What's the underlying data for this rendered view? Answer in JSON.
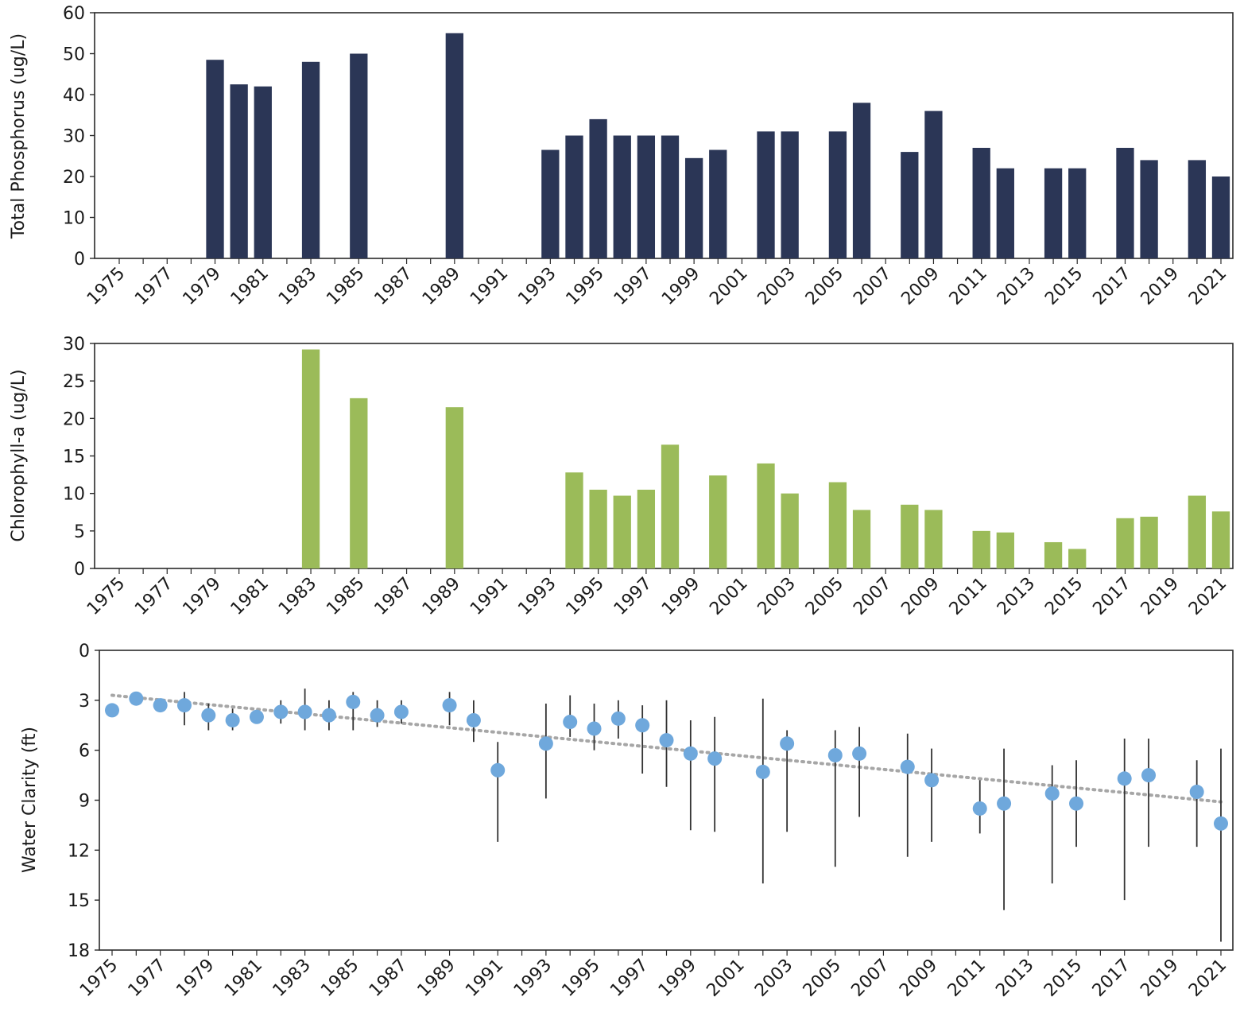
{
  "chart_data": [
    {
      "type": "bar",
      "ylabel": "Total Phosphorus (ug/L)",
      "ylim": [
        0,
        60
      ],
      "yticks": [
        0,
        10,
        20,
        30,
        40,
        50,
        60
      ],
      "xlim": [
        1975,
        2021
      ],
      "xticks": [
        1975,
        1977,
        1979,
        1981,
        1983,
        1985,
        1987,
        1989,
        1991,
        1993,
        1995,
        1997,
        1999,
        2001,
        2003,
        2005,
        2007,
        2009,
        2011,
        2013,
        2015,
        2017,
        2019,
        2021
      ],
      "color": "#2b3656",
      "x": [
        1979,
        1980,
        1981,
        1983,
        1985,
        1989,
        1993,
        1994,
        1995,
        1996,
        1997,
        1998,
        1999,
        2000,
        2002,
        2003,
        2005,
        2006,
        2008,
        2009,
        2011,
        2012,
        2014,
        2015,
        2017,
        2018,
        2020,
        2021
      ],
      "values": [
        48.5,
        42.5,
        42,
        48,
        50,
        55,
        26.5,
        30,
        34,
        30,
        30,
        30,
        24.5,
        26.5,
        31,
        31,
        31,
        38,
        26,
        36,
        27,
        22,
        22,
        22,
        27,
        24,
        24,
        20
      ]
    },
    {
      "type": "bar",
      "ylabel": "Chlorophyll-a (ug/L)",
      "ylim": [
        0,
        30
      ],
      "yticks": [
        0,
        5,
        10,
        15,
        20,
        25,
        30
      ],
      "xlim": [
        1975,
        2021
      ],
      "xticks": [
        1975,
        1977,
        1979,
        1981,
        1983,
        1985,
        1987,
        1989,
        1991,
        1993,
        1995,
        1997,
        1999,
        2001,
        2003,
        2005,
        2007,
        2009,
        2011,
        2013,
        2015,
        2017,
        2019,
        2021
      ],
      "color": "#9bbb59",
      "x": [
        1983,
        1985,
        1989,
        1994,
        1995,
        1996,
        1997,
        1998,
        2000,
        2002,
        2003,
        2005,
        2006,
        2008,
        2009,
        2011,
        2012,
        2014,
        2015,
        2017,
        2018,
        2020,
        2021
      ],
      "values": [
        29.2,
        22.7,
        21.5,
        12.8,
        10.5,
        9.7,
        10.5,
        16.5,
        12.4,
        14,
        10,
        11.5,
        7.8,
        8.5,
        7.8,
        5,
        4.8,
        3.5,
        2.6,
        6.7,
        6.9,
        9.7,
        7.6
      ]
    },
    {
      "type": "scatter",
      "ylabel": "Water Clarity (ft)",
      "ylim": [
        0,
        18
      ],
      "y_inverted": true,
      "yticks": [
        0,
        3,
        6,
        9,
        12,
        15,
        18
      ],
      "xlim": [
        1975,
        2021
      ],
      "xticks": [
        1975,
        1977,
        1979,
        1981,
        1983,
        1985,
        1987,
        1989,
        1991,
        1993,
        1995,
        1997,
        1999,
        2001,
        2003,
        2005,
        2007,
        2009,
        2011,
        2013,
        2015,
        2017,
        2019,
        2021
      ],
      "point_color": "#6fa8dc",
      "errorbar_color": "#333333",
      "trend_color": "#a6a6a6",
      "trend": {
        "x": [
          1975,
          2021
        ],
        "y": [
          2.7,
          9.1
        ]
      },
      "points": [
        {
          "x": 1975,
          "y": 3.6
        },
        {
          "x": 1976,
          "y": 2.9
        },
        {
          "x": 1977,
          "y": 3.3
        },
        {
          "x": 1978,
          "y": 3.3,
          "lo": 2.5,
          "hi": 4.5
        },
        {
          "x": 1979,
          "y": 3.9,
          "lo": 3.2,
          "hi": 4.8
        },
        {
          "x": 1980,
          "y": 4.2,
          "lo": 3.5,
          "hi": 4.8
        },
        {
          "x": 1981,
          "y": 4.0
        },
        {
          "x": 1982,
          "y": 3.7,
          "lo": 3.0,
          "hi": 4.4
        },
        {
          "x": 1983,
          "y": 3.7,
          "lo": 2.3,
          "hi": 4.8
        },
        {
          "x": 1984,
          "y": 3.9,
          "lo": 3.0,
          "hi": 4.8
        },
        {
          "x": 1985,
          "y": 3.1,
          "lo": 2.5,
          "hi": 4.8
        },
        {
          "x": 1986,
          "y": 3.9,
          "lo": 3.0,
          "hi": 4.6
        },
        {
          "x": 1987,
          "y": 3.7,
          "lo": 3.0,
          "hi": 4.4
        },
        {
          "x": 1989,
          "y": 3.3,
          "lo": 2.5,
          "hi": 4.5
        },
        {
          "x": 1990,
          "y": 4.2,
          "lo": 3.0,
          "hi": 5.5
        },
        {
          "x": 1991,
          "y": 7.2,
          "lo": 5.5,
          "hi": 11.5
        },
        {
          "x": 1993,
          "y": 5.6,
          "lo": 3.2,
          "hi": 8.9
        },
        {
          "x": 1994,
          "y": 4.3,
          "lo": 2.7,
          "hi": 5.2
        },
        {
          "x": 1995,
          "y": 4.7,
          "lo": 3.2,
          "hi": 6.0
        },
        {
          "x": 1996,
          "y": 4.1,
          "lo": 3.0,
          "hi": 5.3
        },
        {
          "x": 1997,
          "y": 4.5,
          "lo": 3.3,
          "hi": 7.4
        },
        {
          "x": 1998,
          "y": 5.4,
          "lo": 3.0,
          "hi": 8.2
        },
        {
          "x": 1999,
          "y": 6.2,
          "lo": 4.2,
          "hi": 10.8
        },
        {
          "x": 2000,
          "y": 6.5,
          "lo": 4.0,
          "hi": 10.9
        },
        {
          "x": 2002,
          "y": 7.3,
          "lo": 2.9,
          "hi": 14.0
        },
        {
          "x": 2003,
          "y": 5.6,
          "lo": 4.8,
          "hi": 10.9
        },
        {
          "x": 2005,
          "y": 6.3,
          "lo": 4.8,
          "hi": 13.0
        },
        {
          "x": 2006,
          "y": 6.2,
          "lo": 4.6,
          "hi": 10.0
        },
        {
          "x": 2008,
          "y": 7.0,
          "lo": 5.0,
          "hi": 12.4
        },
        {
          "x": 2009,
          "y": 7.8,
          "lo": 5.9,
          "hi": 11.5
        },
        {
          "x": 2011,
          "y": 9.5,
          "lo": 7.8,
          "hi": 11.0
        },
        {
          "x": 2012,
          "y": 9.2,
          "lo": 5.9,
          "hi": 15.6
        },
        {
          "x": 2014,
          "y": 8.6,
          "lo": 6.9,
          "hi": 14.0
        },
        {
          "x": 2015,
          "y": 9.2,
          "lo": 6.6,
          "hi": 11.8
        },
        {
          "x": 2017,
          "y": 7.7,
          "lo": 5.3,
          "hi": 15.0
        },
        {
          "x": 2018,
          "y": 7.5,
          "lo": 5.3,
          "hi": 11.8
        },
        {
          "x": 2020,
          "y": 8.5,
          "lo": 6.6,
          "hi": 11.8
        },
        {
          "x": 2021,
          "y": 10.4,
          "lo": 5.9,
          "hi": 17.5
        }
      ]
    }
  ]
}
